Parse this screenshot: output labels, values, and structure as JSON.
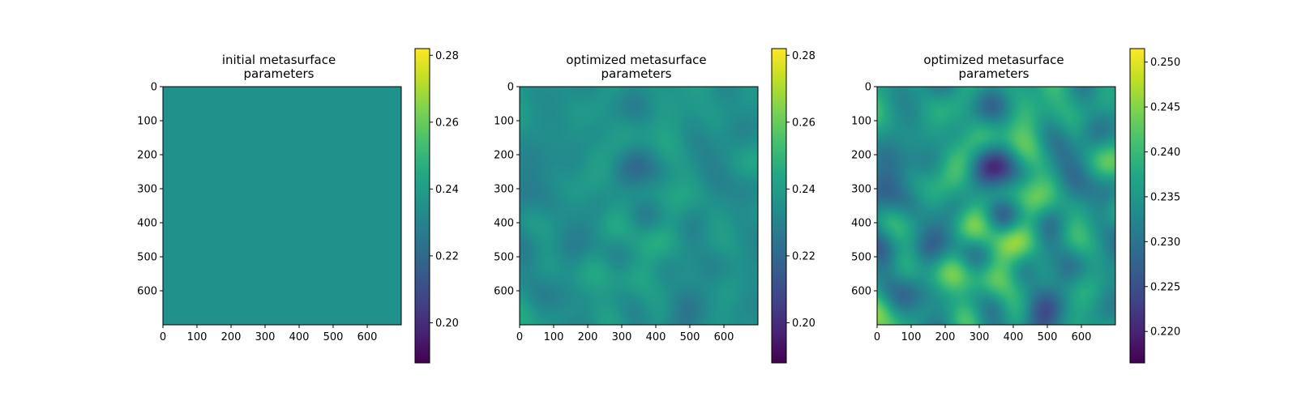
{
  "chart_data": [
    {
      "type": "heatmap",
      "title_lines": [
        "initial metasurface",
        "parameters"
      ],
      "colormap": "viridis",
      "color_range": [
        0.188,
        0.282
      ],
      "colorbar_ticks": [
        "0.20",
        "0.22",
        "0.24",
        "0.26",
        "0.28"
      ],
      "colorbar_tick_values": [
        0.2,
        0.22,
        0.24,
        0.26,
        0.28
      ],
      "x_ticks": [
        "0",
        "100",
        "200",
        "300",
        "400",
        "500",
        "600"
      ],
      "y_ticks": [
        "0",
        "100",
        "200",
        "300",
        "400",
        "500",
        "600"
      ],
      "tick_values": [
        0,
        100,
        200,
        300,
        400,
        500,
        600
      ],
      "extent": [
        0,
        700
      ],
      "field": {
        "base": 0.235,
        "amplitude": 0,
        "seed": 1
      }
    },
    {
      "type": "heatmap",
      "title_lines": [
        "optimized metasurface",
        "parameters"
      ],
      "colormap": "viridis",
      "color_range": [
        0.188,
        0.282
      ],
      "colorbar_ticks": [
        "0.20",
        "0.22",
        "0.24",
        "0.26",
        "0.28"
      ],
      "colorbar_tick_values": [
        0.2,
        0.22,
        0.24,
        0.26,
        0.28
      ],
      "x_ticks": [
        "0",
        "100",
        "200",
        "300",
        "400",
        "500",
        "600"
      ],
      "y_ticks": [
        "0",
        "100",
        "200",
        "300",
        "400",
        "500",
        "600"
      ],
      "tick_values": [
        0,
        100,
        200,
        300,
        400,
        500,
        600
      ],
      "extent": [
        0,
        700
      ],
      "field": {
        "base": 0.235,
        "amplitude": 0.009,
        "seed": 7
      }
    },
    {
      "type": "heatmap",
      "title_lines": [
        "optimized metasurface",
        "parameters"
      ],
      "colormap": "viridis",
      "color_range": [
        0.2165,
        0.2515
      ],
      "colorbar_ticks": [
        "0.220",
        "0.225",
        "0.230",
        "0.235",
        "0.240",
        "0.245",
        "0.250"
      ],
      "colorbar_tick_values": [
        0.22,
        0.225,
        0.23,
        0.235,
        0.24,
        0.245,
        0.25
      ],
      "x_ticks": [
        "0",
        "100",
        "200",
        "300",
        "400",
        "500",
        "600"
      ],
      "y_ticks": [
        "0",
        "100",
        "200",
        "300",
        "400",
        "500",
        "600"
      ],
      "tick_values": [
        0,
        100,
        200,
        300,
        400,
        500,
        600
      ],
      "extent": [
        0,
        700
      ],
      "field": {
        "base": 0.235,
        "amplitude": 0.009,
        "seed": 7
      }
    }
  ]
}
